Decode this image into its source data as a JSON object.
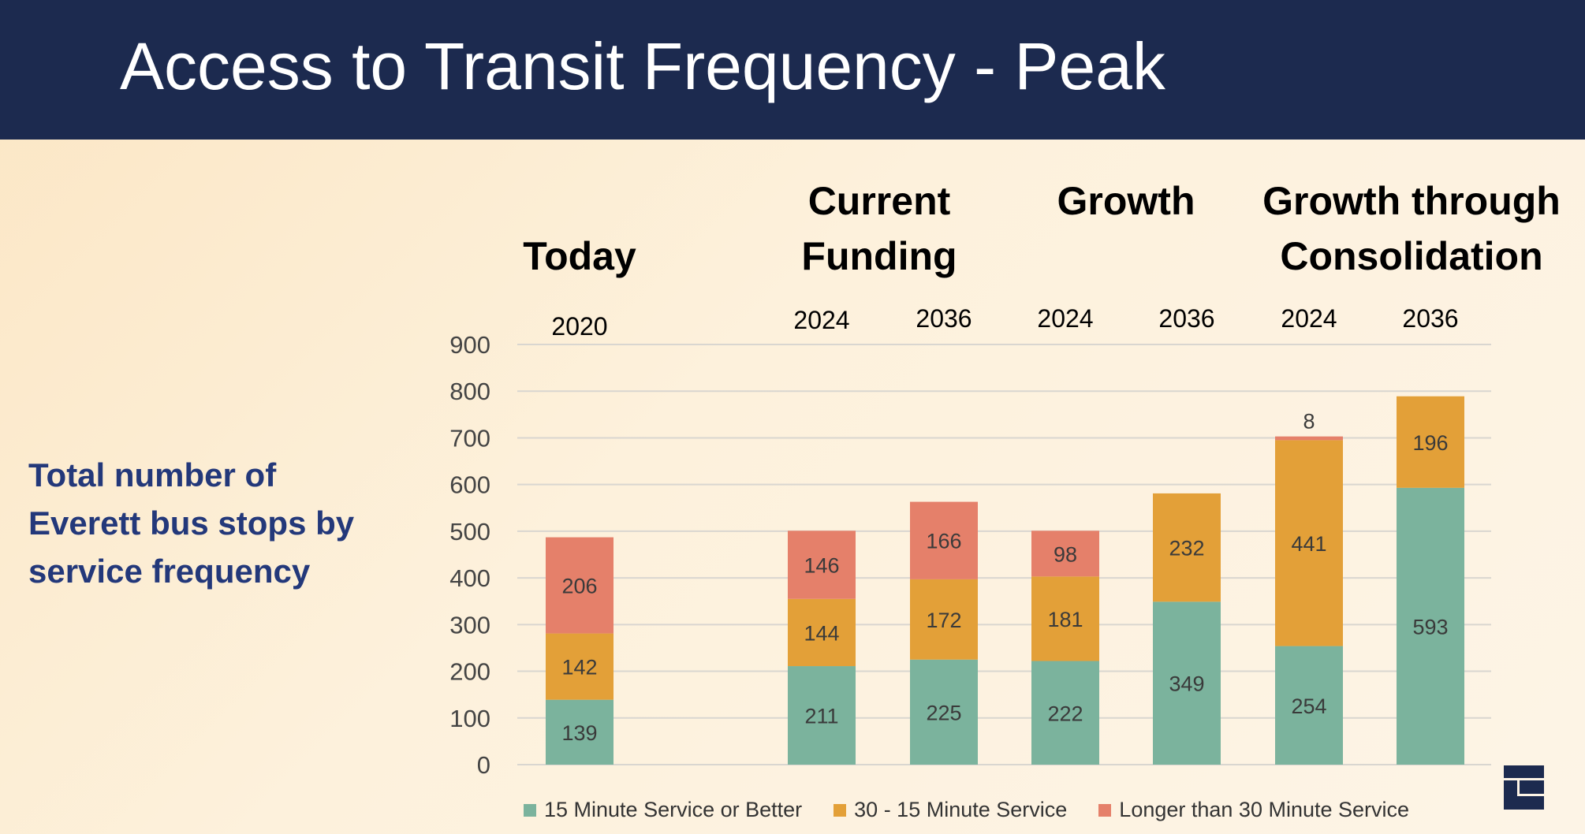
{
  "header": {
    "title": "Access to Transit Frequency - Peak"
  },
  "side_text": "Total number of Everett bus stops by service frequency",
  "groups": [
    {
      "label": "Today"
    },
    {
      "label": "Current Funding"
    },
    {
      "label": "Growth"
    },
    {
      "label": "Growth through Consolidation"
    }
  ],
  "colors": {
    "header": "#1c2a4f",
    "green": "#7bb39d",
    "orange": "#e3a038",
    "red": "#e5806a"
  },
  "logo": {
    "icon": "agency-logo"
  },
  "chart_data": {
    "type": "bar",
    "stacked": true,
    "categories": [
      "2020",
      "2024",
      "2036",
      "2024",
      "2036",
      "2024",
      "2036"
    ],
    "series": [
      {
        "name": "15 Minute Service or Better",
        "color": "#7bb39d",
        "values": [
          139,
          211,
          225,
          222,
          349,
          254,
          593
        ]
      },
      {
        "name": "30 - 15 Minute Service",
        "color": "#e3a038",
        "values": [
          142,
          144,
          172,
          181,
          232,
          441,
          196
        ]
      },
      {
        "name": "Longer than 30 Minute Service",
        "color": "#e5806a",
        "values": [
          206,
          146,
          166,
          98,
          0,
          8,
          0
        ]
      }
    ],
    "yticks": [
      "0",
      "100",
      "200",
      "300",
      "400",
      "500",
      "600",
      "700",
      "800",
      "900"
    ],
    "ylim": [
      0,
      900
    ],
    "grid": true,
    "legend": "bottom"
  }
}
